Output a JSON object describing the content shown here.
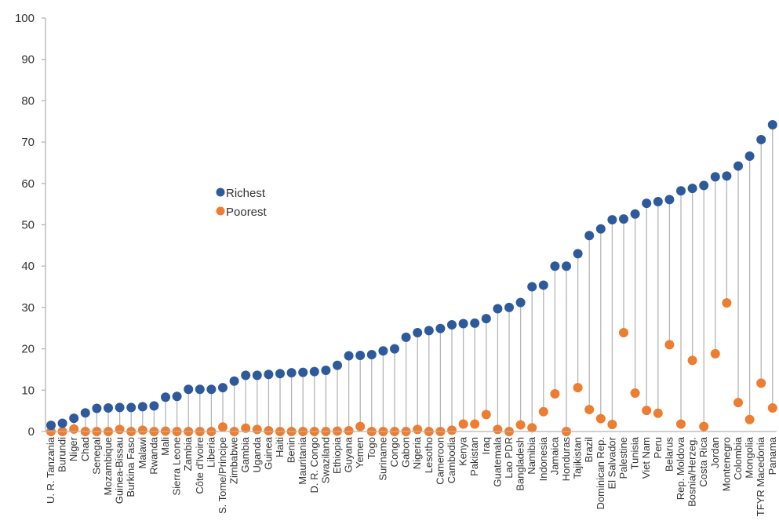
{
  "chart_data": {
    "type": "scatter",
    "ylim": [
      0,
      100
    ],
    "yticks": [
      0,
      10,
      20,
      30,
      40,
      50,
      60,
      70,
      80,
      90,
      100
    ],
    "grid": false,
    "legend_position": "center-left",
    "categories": [
      "U. R. Tanzania",
      "Burundi",
      "Niger",
      "Chad",
      "Senegal",
      "Mozambique",
      "Guinea-Bissau",
      "Burkina Faso",
      "Malawi",
      "Rwanda",
      "Mali",
      "Sierra Leone",
      "Zambia",
      "Côte d'Ivoire",
      "Liberia",
      "S. Tome/Principe",
      "Zimbabwe",
      "Gambia",
      "Uganda",
      "Guinea",
      "Haiti",
      "Benin",
      "Mauritania",
      "D. R. Congo",
      "Swaziland",
      "Ethiopia",
      "Guyana",
      "Yemen",
      "Togo",
      "Suriname",
      "Congo",
      "Gabon",
      "Nigeria",
      "Lesotho",
      "Cameroon",
      "Cambodia",
      "Kenya",
      "Pakistan",
      "Iraq",
      "Guatemala",
      "Lao PDR",
      "Bangladesh",
      "Namibia",
      "Indonesia",
      "Jamaica",
      "Honduras",
      "Tajikistan",
      "Brazil",
      "Dominican Rep.",
      "El Salvador",
      "Palestine",
      "Tunisia",
      "Viet Nam",
      "Peru",
      "Belarus",
      "Rep. Moldova",
      "Bosnia/Herzeg.",
      "Costa Rica",
      "Jordan",
      "Montenegro",
      "Colombia",
      "Mongolia",
      "TFYR Macedonia",
      "Panama"
    ],
    "series": [
      {
        "name": "Richest",
        "color": "#2e5a9c",
        "values": [
          1.5,
          2.0,
          3.2,
          4.5,
          5.6,
          5.7,
          5.8,
          5.8,
          6.0,
          6.2,
          8.3,
          8.5,
          10.2,
          10.2,
          10.2,
          10.6,
          12.2,
          13.6,
          13.6,
          13.8,
          14.0,
          14.2,
          14.3,
          14.5,
          14.8,
          16.0,
          18.3,
          18.4,
          18.6,
          19.5,
          20.0,
          22.8,
          23.9,
          24.4,
          24.9,
          25.8,
          26.1,
          26.2,
          27.3,
          29.7,
          30.0,
          31.2,
          35.0,
          35.4,
          40.0,
          40.0,
          43.0,
          47.4,
          49.0,
          51.2,
          51.4,
          52.6,
          55.2,
          55.6,
          56.1,
          58.2,
          58.8,
          59.5,
          61.6,
          61.8,
          64.2,
          66.6,
          70.6,
          74.2
        ]
      },
      {
        "name": "Poorest",
        "color": "#ed7d31",
        "values": [
          0.0,
          0.0,
          0.6,
          0.0,
          0.0,
          0.0,
          0.5,
          0.0,
          0.3,
          0.0,
          0.1,
          0.0,
          0.0,
          0.0,
          0.0,
          1.1,
          0.0,
          0.8,
          0.5,
          0.2,
          0.0,
          0.0,
          0.0,
          0.0,
          0.0,
          0.1,
          0.2,
          1.2,
          0.0,
          0.0,
          0.0,
          0.0,
          0.5,
          0.0,
          0.0,
          0.3,
          1.8,
          1.8,
          4.1,
          0.5,
          0.0,
          1.6,
          0.9,
          4.8,
          9.1,
          0.0,
          10.6,
          5.3,
          3.1,
          1.7,
          23.9,
          9.3,
          5.1,
          4.4,
          21.0,
          1.8,
          17.2,
          1.2,
          18.8,
          31.1,
          7.0,
          2.9,
          11.7,
          5.7
        ]
      }
    ]
  }
}
